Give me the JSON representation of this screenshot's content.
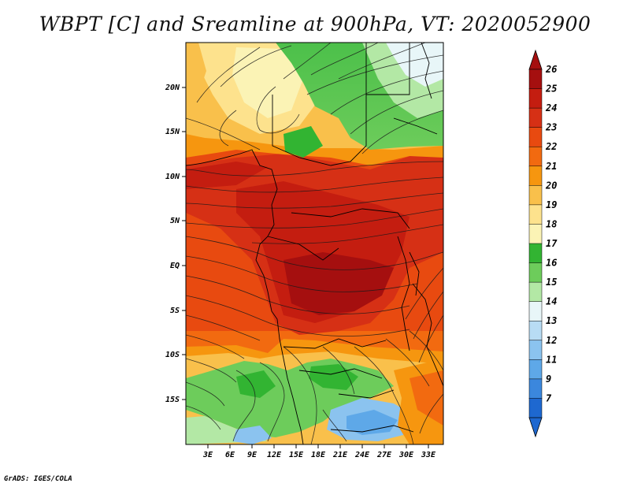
{
  "title": "WBPT [C] and Sreamline at 900hPa, VT: 2020052900",
  "footer": "GrADS: IGES/COLA",
  "map": {
    "lat_labels": [
      "20N",
      "15N",
      "10N",
      "5N",
      "EQ",
      "5S",
      "10S",
      "15S"
    ],
    "lon_labels": [
      "3E",
      "6E",
      "9E",
      "12E",
      "15E",
      "18E",
      "21E",
      "24E",
      "27E",
      "30E",
      "33E"
    ]
  },
  "colorbar": {
    "levels": [
      "26",
      "25",
      "24",
      "23",
      "22",
      "21",
      "20",
      "19",
      "18",
      "17",
      "16",
      "15",
      "14",
      "13",
      "12",
      "11",
      "9",
      "7"
    ],
    "colors": [
      "#a50f0f",
      "#c41d10",
      "#d63015",
      "#e84a10",
      "#f26a10",
      "#f6960f",
      "#f9c04b",
      "#fde28d",
      "#fbf3b5",
      "#32b432",
      "#6dcc5b",
      "#b3e8a5",
      "#e8f6f8",
      "#b8dcf4",
      "#8bc3ef",
      "#5ea8e8",
      "#3b87dd",
      "#1e68d0"
    ],
    "top_arrow_color": "#a50f0f",
    "bottom_arrow_color": "#1e68d0"
  }
}
